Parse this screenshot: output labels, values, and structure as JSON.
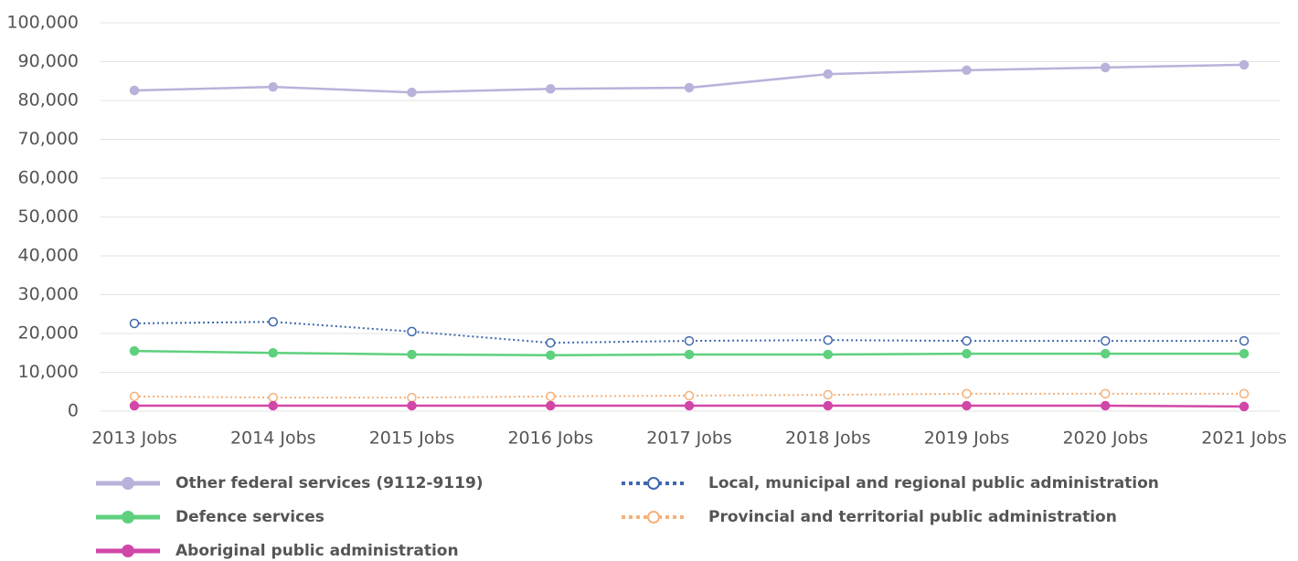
{
  "chart_data": {
    "type": "line",
    "categories": [
      "2013 Jobs",
      "2014 Jobs",
      "2015 Jobs",
      "2016 Jobs",
      "2017 Jobs",
      "2018 Jobs",
      "2019 Jobs",
      "2020 Jobs",
      "2021 Jobs"
    ],
    "series": [
      {
        "name": "Other federal services (9112-9119)",
        "color": "#b8b3da",
        "dashed": false,
        "values": [
          82600,
          83500,
          82100,
          83000,
          83300,
          86800,
          87800,
          88500,
          89200
        ]
      },
      {
        "name": "Local, municipal and regional public administration",
        "color": "#3f67ad",
        "dashed": true,
        "values": [
          22600,
          23000,
          20500,
          17600,
          18100,
          18300,
          18100,
          18100,
          18100
        ]
      },
      {
        "name": "Defence services",
        "color": "#5fd07e",
        "dashed": false,
        "values": [
          15500,
          15000,
          14600,
          14400,
          14600,
          14600,
          14800,
          14800,
          14800
        ]
      },
      {
        "name": "Provincial and territorial public administration",
        "color": "#f5b17a",
        "dashed": true,
        "values": [
          3800,
          3500,
          3500,
          3800,
          4000,
          4200,
          4500,
          4500,
          4500
        ]
      },
      {
        "name": "Aboriginal public administration",
        "color": "#d147a8",
        "dashed": false,
        "values": [
          1400,
          1400,
          1400,
          1400,
          1400,
          1400,
          1400,
          1400,
          1200
        ]
      }
    ],
    "ylim": [
      0,
      100000
    ],
    "yticks": [
      0,
      {
        "value": 10000,
        "label": "10,000"
      },
      {
        "value": 20000,
        "label": "20,000"
      },
      {
        "value": 30000,
        "label": "30,000"
      },
      {
        "value": 40000,
        "label": "40,000"
      },
      {
        "value": 50000,
        "label": "50,000"
      },
      {
        "value": 60000,
        "label": "60,000"
      },
      {
        "value": 70000,
        "label": "70,000"
      },
      {
        "value": 80000,
        "label": "80,000"
      },
      {
        "value": 90000,
        "label": "90,000"
      },
      {
        "value": 100000,
        "label": "100,000"
      }
    ],
    "grid": true
  }
}
